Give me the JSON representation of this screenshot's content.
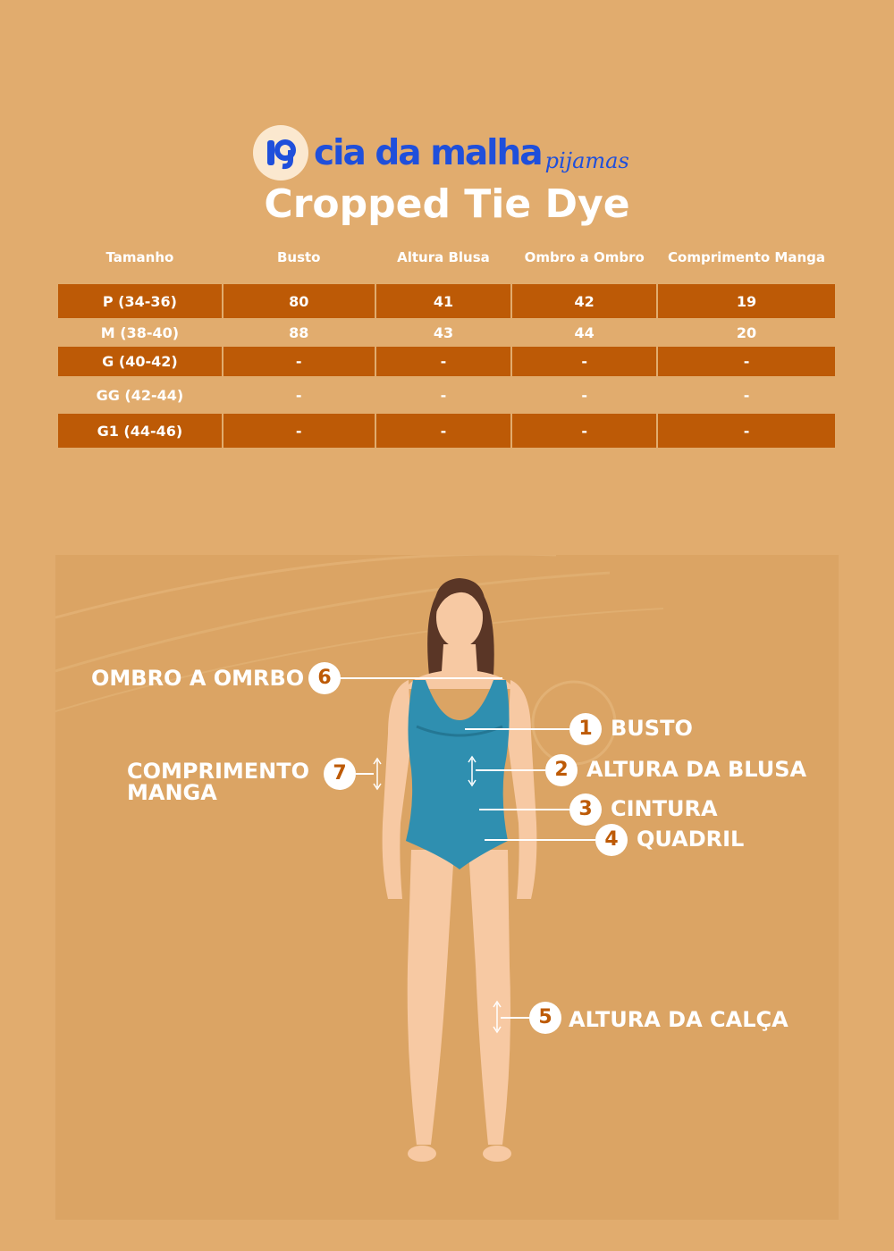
{
  "brand": {
    "name": "cia da malha",
    "sub": "pijamas",
    "icon": "kg-logo-icon",
    "color": "#1f4fdb"
  },
  "title": "Cropped Tie Dye",
  "table": {
    "headers": [
      "Tamanho",
      "Busto",
      "Altura Blusa",
      "Ombro a Ombro",
      "Comprimento Manga"
    ],
    "rows": [
      [
        "P (34-36)",
        "80",
        "41",
        "42",
        "19"
      ],
      [
        "M (38-40)",
        "88",
        "43",
        "44",
        "20"
      ],
      [
        "G (40-42)",
        "-",
        "-",
        "-",
        "-"
      ],
      [
        "GG (42-44)",
        "-",
        "-",
        "-",
        "-"
      ],
      [
        "G1 (44-46)",
        "-",
        "-",
        "-",
        "-"
      ]
    ],
    "highlight_color": "#bd5a06"
  },
  "measures": [
    {
      "num": "1",
      "label": "BUSTO"
    },
    {
      "num": "2",
      "label": "ALTURA DA BLUSA"
    },
    {
      "num": "3",
      "label": "CINTURA"
    },
    {
      "num": "4",
      "label": "QUADRIL"
    },
    {
      "num": "5",
      "label": "ALTURA DA CALÇA"
    },
    {
      "num": "6",
      "label": "OMBRO A OMRBO"
    },
    {
      "num": "7",
      "label_line1": "COMPRIMENTO",
      "label_line2": "MANGA"
    }
  ],
  "colors": {
    "background": "#e1ac6e",
    "swimsuit": "#2f8fb0",
    "skin": "#f7c9a3",
    "hair": "#5a3626"
  }
}
